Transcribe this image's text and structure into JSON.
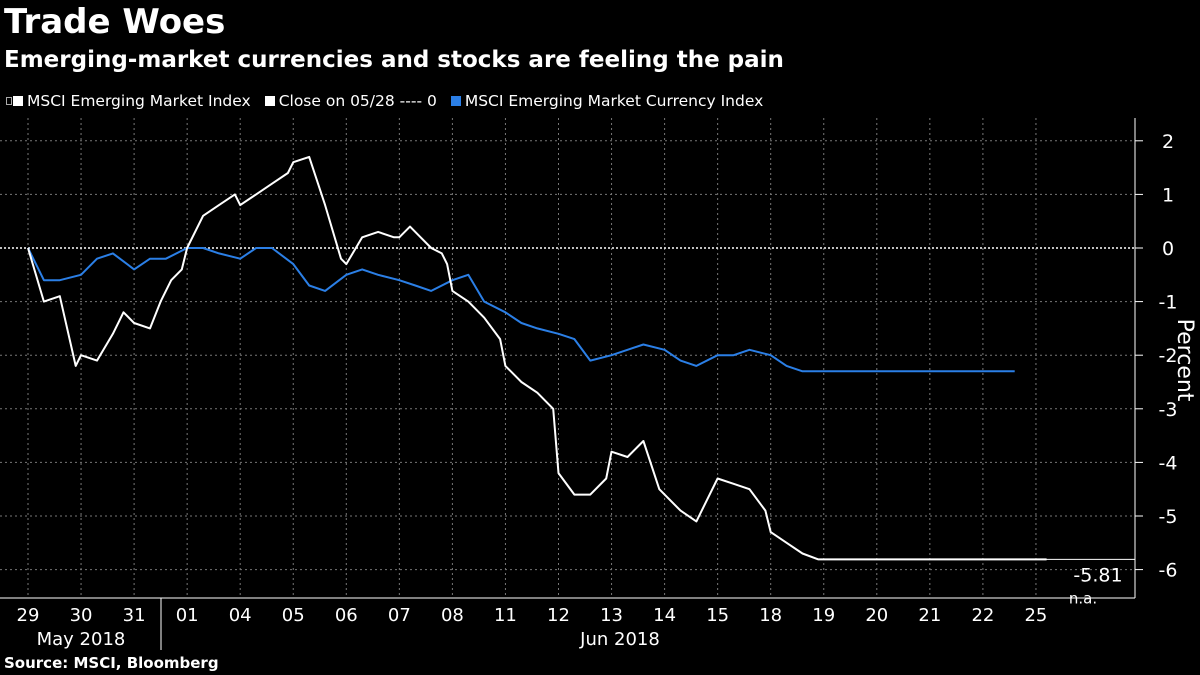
{
  "header": {
    "title": "Trade Woes",
    "subtitle": "Emerging-market currencies and stocks are feeling the pain"
  },
  "legend": {
    "items": [
      {
        "label": "MSCI Emerging Market Index",
        "color": "#ffffff"
      },
      {
        "label": "Close on 05/28 ---- 0",
        "color": "#ffffff"
      },
      {
        "label": "MSCI Emerging Market Currency Index",
        "color": "#2b7fe6"
      }
    ]
  },
  "footer": {
    "source": "Source: MSCI, Bloomberg"
  },
  "chart_data": {
    "type": "line",
    "ylabel": "Percent",
    "ylim": [
      -6.5,
      2.3
    ],
    "yticks": [
      2,
      1,
      0,
      -1,
      -2,
      -3,
      -4,
      -5,
      -6
    ],
    "grid": true,
    "legend_position": "top-left",
    "x_tick_labels": [
      "29",
      "30",
      "31",
      "01",
      "04",
      "05",
      "06",
      "07",
      "08",
      "11",
      "12",
      "13",
      "14",
      "15",
      "18",
      "19",
      "20",
      "21",
      "22",
      "25"
    ],
    "month_labels": [
      "May 2018",
      "Jun 2018"
    ],
    "reference_line": {
      "value": 0,
      "label": "Close on 05/28"
    },
    "last_value_label": "-5.81",
    "last_value_label_2": "n.a.",
    "series": [
      {
        "name": "MSCI Emerging Market Index",
        "color": "#ffffff",
        "x": [
          0,
          0.3,
          0.6,
          0.9,
          1,
          1.3,
          1.6,
          1.8,
          2,
          2.3,
          2.5,
          2.7,
          2.9,
          3,
          3.3,
          3.6,
          3.9,
          4,
          4.3,
          4.6,
          4.9,
          5,
          5.3,
          5.6,
          5.9,
          6,
          6.3,
          6.6,
          6.9,
          7,
          7.2,
          7.4,
          7.6,
          7.8,
          7.9,
          8,
          8.3,
          8.6,
          8.9,
          9,
          9.3,
          9.6,
          9.9,
          10,
          10.3,
          10.6,
          10.9,
          11,
          11.3,
          11.6,
          11.9,
          12,
          12.3,
          12.6,
          12.9,
          13,
          13.3,
          13.6,
          13.9,
          14,
          14.3,
          14.6,
          14.9,
          15,
          15.3,
          15.6,
          15.9,
          16,
          16.3,
          16.6,
          16.9,
          17,
          17.3,
          17.6,
          17.9,
          18,
          18.3,
          18.6,
          18.9,
          19,
          19.2
        ],
        "values": [
          0,
          -1.0,
          -0.9,
          -2.2,
          -2.0,
          -2.1,
          -1.6,
          -1.2,
          -1.4,
          -1.5,
          -1.0,
          -0.6,
          -0.4,
          0.0,
          0.6,
          0.8,
          1.0,
          0.8,
          1.0,
          1.2,
          1.4,
          1.6,
          1.7,
          0.8,
          -0.2,
          -0.3,
          0.2,
          0.3,
          0.2,
          0.2,
          0.4,
          0.2,
          0.0,
          -0.1,
          -0.3,
          -0.8,
          -1.0,
          -1.3,
          -1.7,
          -2.2,
          -2.5,
          -2.7,
          -3.0,
          -4.2,
          -4.6,
          -4.6,
          -4.3,
          -3.8,
          -3.9,
          -3.6,
          -4.5,
          -4.6,
          -4.9,
          -5.1,
          -4.5,
          -4.3,
          -4.4,
          -4.5,
          -4.9,
          -5.3,
          -5.5,
          -5.7,
          -5.81,
          -5.81,
          -5.81,
          -5.81,
          -5.81,
          -5.81,
          -5.81,
          -5.81,
          -5.81,
          -5.81,
          -5.81,
          -5.81,
          -5.81,
          -5.81,
          -5.81,
          -5.81,
          -5.81,
          -5.81,
          -5.81
        ]
      },
      {
        "name": "MSCI Emerging Market Currency Index",
        "color": "#2b7fe6",
        "x": [
          0,
          0.3,
          0.6,
          1,
          1.3,
          1.6,
          2,
          2.3,
          2.6,
          3,
          3.3,
          3.6,
          4,
          4.3,
          4.6,
          5,
          5.3,
          5.6,
          6,
          6.3,
          6.6,
          7,
          7.3,
          7.6,
          8,
          8.3,
          8.6,
          9,
          9.3,
          9.6,
          10,
          10.3,
          10.6,
          11,
          11.3,
          11.6,
          12,
          12.3,
          12.6,
          13,
          13.3,
          13.6,
          14,
          14.3,
          14.6,
          15,
          15.3,
          15.6,
          16,
          16.3,
          16.6,
          17,
          17.3,
          17.6,
          18,
          18.3,
          18.6
        ],
        "values": [
          0,
          -0.6,
          -0.6,
          -0.5,
          -0.2,
          -0.1,
          -0.4,
          -0.2,
          -0.2,
          0.0,
          0.0,
          -0.1,
          -0.2,
          0.0,
          0.0,
          -0.3,
          -0.7,
          -0.8,
          -0.5,
          -0.4,
          -0.5,
          -0.6,
          -0.7,
          -0.8,
          -0.6,
          -0.5,
          -1.0,
          -1.2,
          -1.4,
          -1.5,
          -1.6,
          -1.7,
          -2.1,
          -2.0,
          -1.9,
          -1.8,
          -1.9,
          -2.1,
          -2.2,
          -2.0,
          -2.0,
          -1.9,
          -2.0,
          -2.2,
          -2.3,
          -2.3,
          -2.3,
          -2.3,
          -2.3,
          -2.3,
          -2.3,
          -2.3,
          -2.3,
          -2.3,
          -2.3,
          -2.3,
          -2.3
        ]
      }
    ]
  }
}
